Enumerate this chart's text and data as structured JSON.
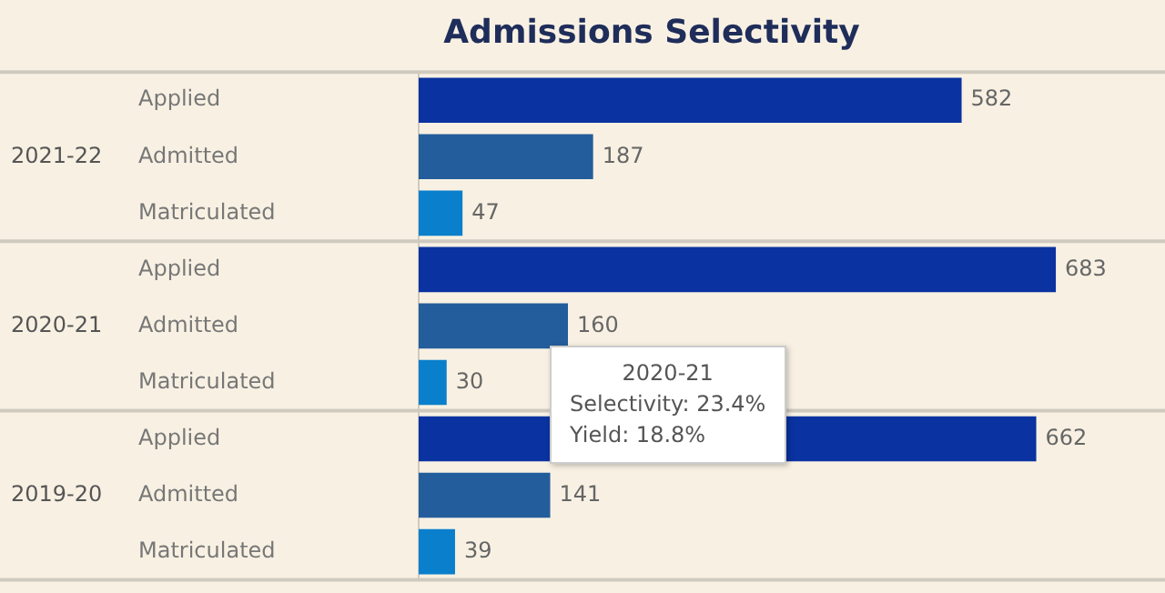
{
  "chart_data": {
    "type": "bar",
    "orientation": "horizontal",
    "title": "Admissions Selectivity",
    "categories": [
      "Applied",
      "Admitted",
      "Matriculated",
      "Applied",
      "Admitted",
      "Matriculated",
      "Applied",
      "Admitted",
      "Matriculated"
    ],
    "values": [
      582,
      187,
      47,
      683,
      160,
      30,
      662,
      141,
      39
    ],
    "colors": [
      "#0a32a0",
      "#245d9b",
      "#0a7fcc",
      "#0a32a0",
      "#245d9b",
      "#0a7fcc",
      "#0a32a0",
      "#245d9b",
      "#0a7fcc"
    ],
    "data_labels": true,
    "legend": false,
    "annotations": [
      "2021-22",
      "2020-21",
      "2019-20",
      "2020-21",
      "Selectivity: 23.4%",
      "Yield: 18.8%"
    ]
  }
}
